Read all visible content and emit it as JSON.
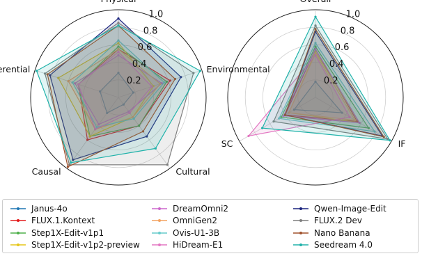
{
  "chart_data": [
    {
      "type": "radar",
      "axes": [
        "Physical",
        "Environmental",
        "Cultural",
        "Causal",
        "Referential"
      ],
      "radial_ticks": [
        "0.2",
        "0.4",
        "0.6",
        "0.8",
        "1.0"
      ],
      "rlim": [
        0,
        1.0
      ],
      "series": [
        {
          "name": "Janus-4o",
          "values": [
            0.28,
            0.18,
            0.1,
            0.22,
            0.22
          ]
        },
        {
          "name": "FLUX.1.Kontext",
          "values": [
            0.55,
            0.62,
            0.4,
            0.6,
            0.48
          ]
        },
        {
          "name": "Step1X-Edit-v1p1",
          "values": [
            0.58,
            0.58,
            0.4,
            0.55,
            0.48
          ]
        },
        {
          "name": "Step1X-Edit-v1p2-preview",
          "values": [
            0.62,
            0.42,
            0.28,
            0.55,
            0.72
          ]
        },
        {
          "name": "DreamOmni2",
          "values": [
            0.48,
            0.52,
            0.2,
            0.38,
            0.52
          ]
        },
        {
          "name": "OmniGen2",
          "values": [
            0.55,
            0.5,
            0.28,
            0.45,
            0.6
          ]
        },
        {
          "name": "Ovis-U1-3B",
          "values": [
            0.65,
            0.55,
            0.3,
            0.42,
            0.55
          ]
        },
        {
          "name": "HiDream-E1",
          "values": [
            0.52,
            0.4,
            0.22,
            0.45,
            0.48
          ]
        },
        {
          "name": "Qwen-Image-Edit",
          "values": [
            0.9,
            0.75,
            0.55,
            0.88,
            0.82
          ]
        },
        {
          "name": "FLUX.2 Dev",
          "values": [
            0.85,
            0.9,
            0.95,
            0.95,
            0.88
          ]
        },
        {
          "name": "Nano Banana",
          "values": [
            0.82,
            0.68,
            0.48,
            0.98,
            0.85
          ]
        },
        {
          "name": "Seedream 4.0",
          "values": [
            0.82,
            0.98,
            0.72,
            0.92,
            0.98
          ]
        }
      ]
    },
    {
      "type": "radar",
      "axes": [
        "Overall",
        "IF",
        "SC"
      ],
      "radial_ticks": [
        "0.2",
        "0.4",
        "0.6",
        "0.8",
        "1.0"
      ],
      "rlim": [
        0,
        1.0
      ],
      "series": [
        {
          "name": "Janus-4o",
          "values": [
            0.18,
            0.35,
            0.28
          ]
        },
        {
          "name": "FLUX.1.Kontext",
          "values": [
            0.55,
            0.55,
            0.4
          ]
        },
        {
          "name": "Step1X-Edit-v1p1",
          "values": [
            0.58,
            0.7,
            0.45
          ]
        },
        {
          "name": "Step1X-Edit-v1p2-preview",
          "values": [
            0.52,
            0.58,
            0.35
          ]
        },
        {
          "name": "DreamOmni2",
          "values": [
            0.55,
            0.58,
            0.42
          ]
        },
        {
          "name": "OmniGen2",
          "values": [
            0.5,
            0.52,
            0.35
          ]
        },
        {
          "name": "Ovis-U1-3B",
          "values": [
            0.62,
            0.78,
            0.48
          ]
        },
        {
          "name": "HiDream-E1",
          "values": [
            0.48,
            0.45,
            0.88
          ]
        },
        {
          "name": "Qwen-Image-Edit",
          "values": [
            0.75,
            0.88,
            0.4
          ]
        },
        {
          "name": "FLUX.2 Dev",
          "values": [
            0.82,
            0.95,
            0.55
          ]
        },
        {
          "name": "Nano Banana",
          "values": [
            0.78,
            0.9,
            0.4
          ]
        },
        {
          "name": "Seedream 4.0",
          "values": [
            0.92,
            0.98,
            0.7
          ]
        }
      ]
    }
  ],
  "colors": [
    "#1f77b4",
    "#e41a1c",
    "#4daf4a",
    "#e6c619",
    "#cc66cc",
    "#f4a460",
    "#66cccc",
    "#e377c2",
    "#1a237e",
    "#7f7f7f",
    "#a0522d",
    "#20b2aa"
  ],
  "legend": {
    "columns": [
      [
        "Janus-4o",
        "FLUX.1.Kontext",
        "Step1X-Edit-v1p1",
        "Step1X-Edit-v1p2-preview"
      ],
      [
        "DreamOmni2",
        "OmniGen2",
        "Ovis-U1-3B",
        "HiDream-E1"
      ],
      [
        "Qwen-Image-Edit",
        "FLUX.2 Dev",
        "Nano Banana",
        "Seedream 4.0"
      ]
    ]
  }
}
